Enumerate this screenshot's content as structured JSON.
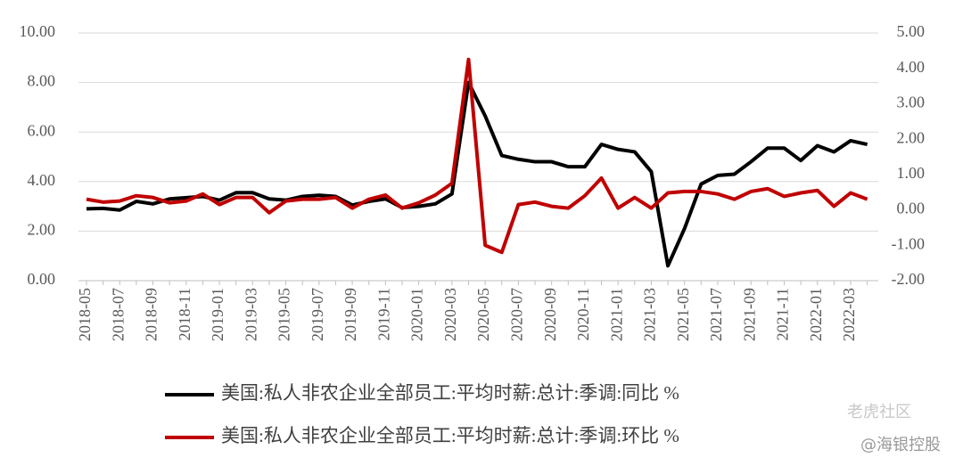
{
  "chart_data": {
    "type": "line",
    "categories": [
      "2018-05",
      null,
      "2018-07",
      null,
      "2018-09",
      null,
      "2018-11",
      null,
      "2019-01",
      null,
      "2019-03",
      null,
      "2019-05",
      null,
      "2019-07",
      null,
      "2019-09",
      null,
      "2019-11",
      null,
      "2020-01",
      null,
      "2020-03",
      null,
      "2020-05",
      null,
      "2020-07",
      null,
      "2020-09",
      null,
      "2020-11",
      null,
      "2021-01",
      null,
      "2021-03",
      null,
      "2021-05",
      null,
      "2021-07",
      null,
      "2021-09",
      null,
      "2021-11",
      null,
      "2022-01",
      null,
      "2022-03",
      null
    ],
    "series": [
      {
        "name": "美国:私人非农企业全部员工:平均时薪:总计:季调:同比 %",
        "color": "#000000",
        "values": [
          2.9,
          2.92,
          2.85,
          3.2,
          3.1,
          3.3,
          3.35,
          3.4,
          3.25,
          3.55,
          3.55,
          3.3,
          3.25,
          3.4,
          3.45,
          3.4,
          3.05,
          3.2,
          3.3,
          2.95,
          3.0,
          3.1,
          3.5,
          8.0,
          6.65,
          5.05,
          4.9,
          4.8,
          4.8,
          4.6,
          4.6,
          5.5,
          5.3,
          5.2,
          4.4,
          0.6,
          2.1,
          3.9,
          4.25,
          4.3,
          4.8,
          5.35,
          5.35,
          4.85,
          5.45,
          5.2,
          5.65,
          5.5
        ]
      },
      {
        "name": "美国:私人非农企业全部员工:平均时薪:总计:季调:环比 %",
        "color": "#c00000",
        "axis": "y2",
        "values": [
          0.3,
          0.22,
          0.25,
          0.4,
          0.35,
          0.2,
          0.25,
          0.45,
          0.15,
          0.35,
          0.35,
          -0.08,
          0.25,
          0.3,
          0.3,
          0.35,
          0.05,
          0.3,
          0.42,
          0.05,
          0.2,
          0.42,
          0.75,
          4.25,
          -1.0,
          -1.2,
          0.15,
          0.22,
          0.1,
          0.05,
          0.4,
          0.9,
          0.05,
          0.35,
          0.05,
          0.48,
          0.52,
          0.52,
          0.45,
          0.3,
          0.52,
          0.6,
          0.38,
          0.48,
          0.55,
          0.1,
          0.48,
          0.3
        ]
      }
    ],
    "ylim": [
      0,
      10
    ],
    "yticks": [
      {
        "value": 0,
        "label": "0.00"
      },
      {
        "value": 2,
        "label": "2.00"
      },
      {
        "value": 4,
        "label": "4.00"
      },
      {
        "value": 6,
        "label": "6.00"
      },
      {
        "value": 8,
        "label": "8.00"
      },
      {
        "value": 10,
        "label": "10.00"
      }
    ],
    "y2lim": [
      -2,
      5
    ],
    "y2ticks": [
      {
        "value": -2,
        "label": "-2.00"
      },
      {
        "value": -1,
        "label": "-1.00"
      },
      {
        "value": 0,
        "label": "0.00"
      },
      {
        "value": 1,
        "label": "1.00"
      },
      {
        "value": 2,
        "label": "2.00"
      },
      {
        "value": 3,
        "label": "3.00"
      },
      {
        "value": 4,
        "label": "4.00"
      },
      {
        "value": 5,
        "label": "5.00"
      }
    ],
    "grid": true
  },
  "watermark": {
    "brand": "老虎社区",
    "account": "@海银控股"
  }
}
